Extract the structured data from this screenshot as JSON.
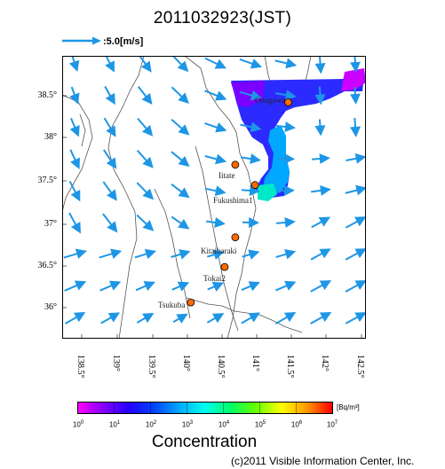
{
  "header": {
    "title": "2011032923(JST)",
    "reference_vector_label": ":5.0[m/s]"
  },
  "map": {
    "lon_range": [
      138.3,
      142.6
    ],
    "lat_range": [
      35.6,
      38.95
    ],
    "lat_labels": [
      "38.5°",
      "38°",
      "37.5°",
      "37°",
      "36.5°",
      "36°"
    ],
    "lon_labels": [
      "138.5°",
      "139°",
      "139.5°",
      "140°",
      "140.5°",
      "141°",
      "141.5°",
      "142°",
      "142.5°"
    ],
    "sites": [
      {
        "name": "Onagawa",
        "lon": 141.5,
        "lat": 38.4
      },
      {
        "name": "Iitate",
        "lon": 140.75,
        "lat": 37.66
      },
      {
        "name": "Fukushima1",
        "lon": 141.03,
        "lat": 37.42
      },
      {
        "name": "Kitaibaraki",
        "lon": 140.75,
        "lat": 36.8
      },
      {
        "name": "Tokai2",
        "lon": 140.6,
        "lat": 36.45
      },
      {
        "name": "Tsukuba",
        "lon": 140.12,
        "lat": 36.03
      }
    ],
    "colors": {
      "arrow": "#1e96e6",
      "site_marker": "#ff6a00",
      "coast": "#555555"
    }
  },
  "colorbar": {
    "labels": [
      "10",
      "10",
      "10",
      "10",
      "10",
      "10",
      "10",
      "10"
    ],
    "exponents": [
      "0",
      "1",
      "2",
      "3",
      "4",
      "5",
      "6",
      "7"
    ],
    "unit": "[Bq/m³]",
    "title": "Concentration"
  },
  "footer": {
    "copyright": "(c)2011 Visible Information Center, Inc."
  }
}
